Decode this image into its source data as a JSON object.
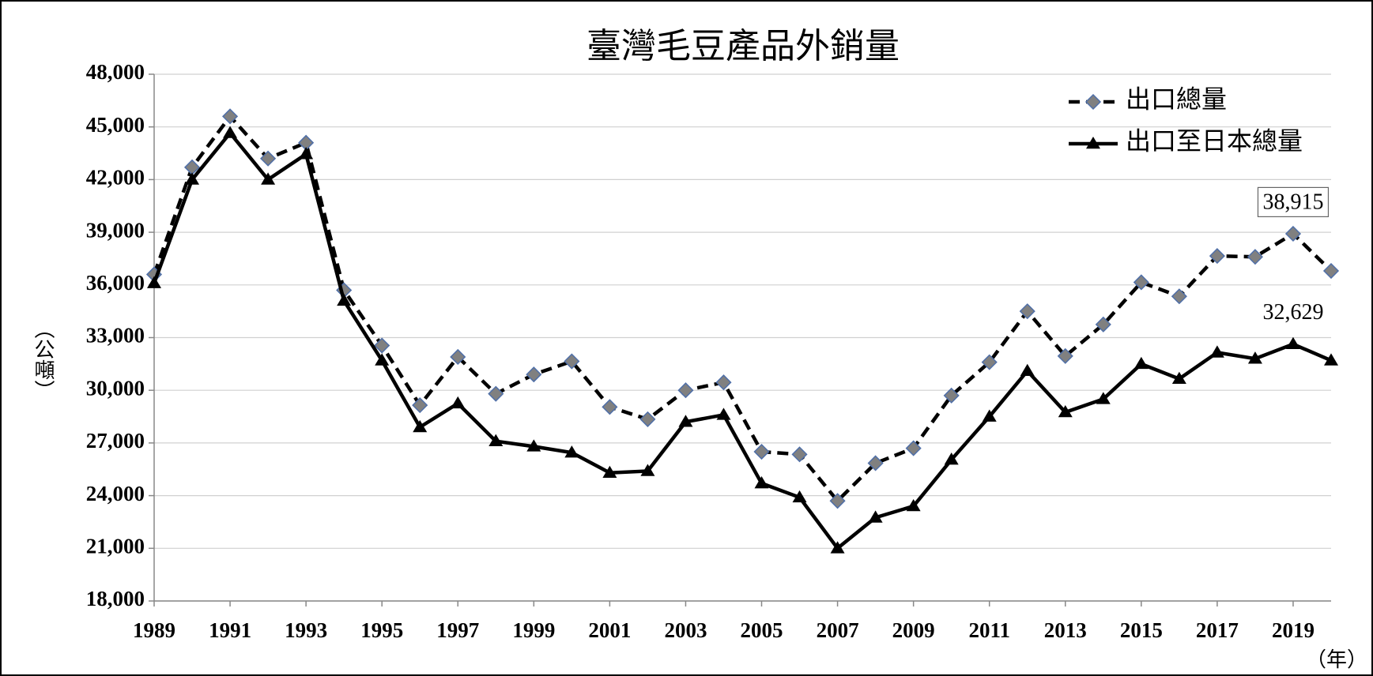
{
  "chart_data": {
    "type": "line",
    "title": "臺灣毛豆產品外銷量",
    "y_label": "（公噸）",
    "x_label": "（年）",
    "x": [
      1989,
      1990,
      1991,
      1992,
      1993,
      1994,
      1995,
      1996,
      1997,
      1998,
      1999,
      2000,
      2001,
      2002,
      2003,
      2004,
      2005,
      2006,
      2007,
      2008,
      2009,
      2010,
      2011,
      2012,
      2013,
      2014,
      2015,
      2016,
      2017,
      2018,
      2019,
      2020
    ],
    "xlim": [
      1989,
      2020
    ],
    "xticks": [
      1989,
      1991,
      1993,
      1995,
      1997,
      1999,
      2001,
      2003,
      2005,
      2007,
      2009,
      2011,
      2013,
      2015,
      2017,
      2019
    ],
    "ylim": [
      18000,
      48000
    ],
    "yticks": [
      {
        "value": 18000,
        "label": "18,000"
      },
      {
        "value": 21000,
        "label": "21,000"
      },
      {
        "value": 24000,
        "label": "24,000"
      },
      {
        "value": 27000,
        "label": "27,000"
      },
      {
        "value": 30000,
        "label": "30,000"
      },
      {
        "value": 33000,
        "label": "33,000"
      },
      {
        "value": 36000,
        "label": "36,000"
      },
      {
        "value": 39000,
        "label": "39,000"
      },
      {
        "value": 42000,
        "label": "42,000"
      },
      {
        "value": 45000,
        "label": "45,000"
      },
      {
        "value": 48000,
        "label": "48,000"
      }
    ],
    "grid": true,
    "legend": "top-right",
    "series": [
      {
        "name": "出口總量",
        "color": "#000000",
        "marker_color": "#808080",
        "dashed": true,
        "marker": "diamond",
        "values": [
          36600,
          42700,
          45600,
          43200,
          44100,
          35700,
          32550,
          29150,
          31900,
          29800,
          30900,
          31650,
          29050,
          28350,
          30000,
          30450,
          26500,
          26350,
          23700,
          25850,
          26700,
          29700,
          31600,
          34500,
          31950,
          33750,
          36150,
          35350,
          37650,
          37600,
          38915,
          36800
        ],
        "value_labels": [
          null,
          null,
          null,
          null,
          null,
          null,
          null,
          null,
          null,
          null,
          null,
          null,
          null,
          null,
          null,
          null,
          null,
          null,
          null,
          null,
          null,
          null,
          null,
          null,
          null,
          null,
          null,
          null,
          null,
          null,
          "38,915",
          null
        ]
      },
      {
        "name": "出口至日本總量",
        "color": "#000000",
        "marker_color": "#000000",
        "dashed": false,
        "marker": "triangle",
        "values": [
          36100,
          42000,
          44650,
          42000,
          43450,
          35100,
          31700,
          27900,
          29250,
          27100,
          26800,
          26450,
          25300,
          25400,
          28200,
          28600,
          24700,
          23900,
          21000,
          22750,
          23400,
          26050,
          28500,
          31100,
          28750,
          29500,
          31500,
          30650,
          32150,
          31800,
          32629,
          31700
        ],
        "value_labels": [
          null,
          null,
          null,
          null,
          null,
          null,
          null,
          null,
          null,
          null,
          null,
          null,
          null,
          null,
          null,
          null,
          null,
          null,
          null,
          null,
          null,
          null,
          null,
          null,
          null,
          null,
          null,
          null,
          null,
          null,
          "32,629",
          null
        ]
      }
    ]
  }
}
